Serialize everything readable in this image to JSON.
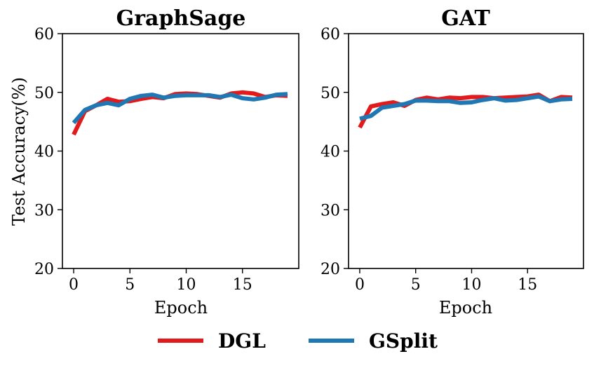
{
  "chart_data": [
    {
      "type": "line",
      "title": "GraphSage",
      "xlabel": "Epoch",
      "ylabel": "Test Accuracy(%)",
      "xlim": [
        -1,
        20
      ],
      "ylim": [
        20,
        60
      ],
      "xticks": [
        0,
        5,
        10,
        15
      ],
      "yticks": [
        20,
        30,
        40,
        50,
        60
      ],
      "grid": false,
      "series": [
        {
          "name": "DGL",
          "color": "#e31a1c",
          "x": [
            0,
            1,
            2,
            3,
            4,
            5,
            6,
            7,
            8,
            9,
            10,
            11,
            12,
            13,
            14,
            15,
            16,
            17,
            18,
            19
          ],
          "values": [
            42.8,
            46.8,
            47.8,
            48.9,
            48.4,
            48.5,
            48.9,
            49.2,
            49.0,
            49.7,
            49.8,
            49.7,
            49.4,
            49.1,
            49.8,
            50.0,
            49.8,
            49.2,
            49.5,
            49.4
          ]
        },
        {
          "name": "GSplit",
          "color": "#1f78b4",
          "x": [
            0,
            1,
            2,
            3,
            4,
            5,
            6,
            7,
            8,
            9,
            10,
            11,
            12,
            13,
            14,
            15,
            16,
            17,
            18,
            19
          ],
          "values": [
            44.8,
            47.0,
            47.8,
            48.2,
            47.8,
            48.9,
            49.4,
            49.6,
            49.1,
            49.4,
            49.5,
            49.5,
            49.5,
            49.2,
            49.6,
            49.0,
            48.8,
            49.1,
            49.6,
            49.7
          ]
        }
      ]
    },
    {
      "type": "line",
      "title": "GAT",
      "xlabel": "Epoch",
      "ylabel": "",
      "xlim": [
        -1,
        20
      ],
      "ylim": [
        20,
        60
      ],
      "xticks": [
        0,
        5,
        10,
        15
      ],
      "yticks": [
        20,
        30,
        40,
        50,
        60
      ],
      "grid": false,
      "series": [
        {
          "name": "DGL",
          "color": "#e31a1c",
          "x": [
            0,
            1,
            2,
            3,
            4,
            5,
            6,
            7,
            8,
            9,
            10,
            11,
            12,
            13,
            14,
            15,
            16,
            17,
            18,
            19
          ],
          "values": [
            44.0,
            47.6,
            48.0,
            48.3,
            47.7,
            48.7,
            49.1,
            48.8,
            49.1,
            49.0,
            49.2,
            49.2,
            49.0,
            49.1,
            49.2,
            49.3,
            49.6,
            48.5,
            49.2,
            49.1
          ]
        },
        {
          "name": "GSplit",
          "color": "#1f78b4",
          "x": [
            0,
            1,
            2,
            3,
            4,
            5,
            6,
            7,
            8,
            9,
            10,
            11,
            12,
            13,
            14,
            15,
            16,
            17,
            18,
            19
          ],
          "values": [
            45.5,
            46.0,
            47.4,
            47.7,
            48.0,
            48.6,
            48.6,
            48.5,
            48.5,
            48.2,
            48.3,
            48.7,
            49.0,
            48.6,
            48.7,
            49.0,
            49.3,
            48.5,
            48.8,
            48.9
          ]
        }
      ]
    }
  ],
  "legend": [
    {
      "label": "DGL",
      "color": "#e31a1c"
    },
    {
      "label": "GSplit",
      "color": "#1f78b4"
    }
  ]
}
